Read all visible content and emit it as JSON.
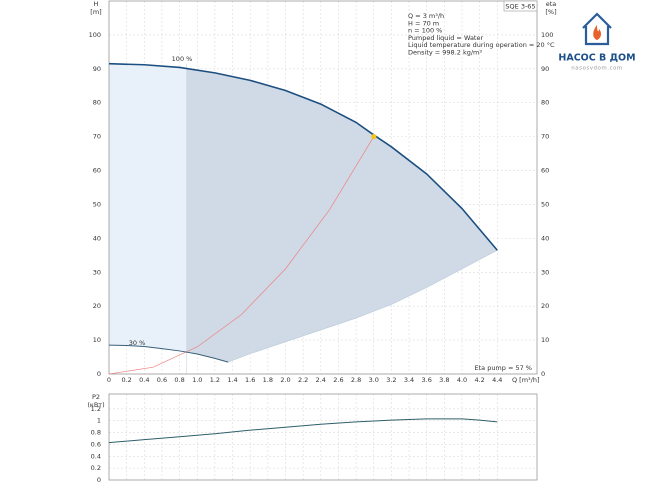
{
  "logo": {
    "title": "НАСОС В ДОМ",
    "subtitle": "nasosvdom.com"
  },
  "chart_data": [
    {
      "type": "line",
      "model": "SQE 3-65",
      "ylabel": "H",
      "yunit": "[m]",
      "y2label": "eta",
      "y2unit": "[%]",
      "xlabel": "Q [m³/h]",
      "info": [
        "Q = 3 m³/h",
        "H = 70 m",
        "n = 100 %",
        "Pumped liquid = Water",
        "Liquid temperature during operation = 20 °C",
        "Density = 998.2 kg/m³"
      ],
      "efficiency_label": "Eta pump = 57 %",
      "xlim": [
        0,
        4.85
      ],
      "xticks": [
        0,
        0.2,
        0.4,
        0.6,
        0.8,
        {
          "value": 1,
          "label": "1.0"
        },
        1.2,
        1.4,
        1.6,
        1.8,
        {
          "value": 2,
          "label": "2.0"
        },
        2.2,
        2.4,
        2.6,
        2.8,
        {
          "value": 3,
          "label": "3.0"
        },
        3.2,
        3.4,
        3.6,
        3.8,
        {
          "value": 4,
          "label": "4.0"
        },
        4.2,
        4.4
      ],
      "ylim": [
        0,
        110
      ],
      "yticks": [
        0,
        10,
        20,
        30,
        40,
        50,
        60,
        70,
        80,
        90,
        100
      ],
      "y2lim": [
        0,
        110
      ],
      "y2ticks": [
        0,
        10,
        20,
        30,
        40,
        50,
        60,
        70,
        80,
        90,
        100
      ],
      "grid": true,
      "series": [
        {
          "name": "100 %",
          "color": "#1c4f80",
          "x": [
            0,
            0.4,
            0.8,
            1.2,
            1.6,
            2.0,
            2.4,
            2.8,
            3.0,
            3.2,
            3.6,
            4.0,
            4.4
          ],
          "values": [
            91.5,
            91.2,
            90.4,
            88.8,
            86.6,
            83.6,
            79.6,
            74.2,
            70.5,
            67,
            59,
            48.8,
            36.5
          ]
        },
        {
          "name": "30 %",
          "color": "#3a5f7a",
          "x": [
            0,
            0.2,
            0.4,
            0.6,
            0.8,
            1.0,
            1.2,
            1.35
          ],
          "values": [
            8.5,
            8.4,
            8.1,
            7.5,
            6.8,
            5.9,
            4.6,
            3.5
          ]
        }
      ],
      "system_curve": {
        "color": "#f08080",
        "x": [
          0,
          0.5,
          1.0,
          1.5,
          2.0,
          2.5,
          3.0
        ],
        "values": [
          0,
          2,
          8,
          17.5,
          31,
          48.5,
          70
        ]
      },
      "area_lower": {
        "color": "#b9c9d9",
        "x": [
          1.35,
          1.6,
          2.0,
          2.4,
          2.8,
          3.2,
          3.6,
          4.0,
          4.4
        ],
        "values": [
          3.5,
          6,
          9.5,
          13,
          16.5,
          20.5,
          25.5,
          31,
          36.5
        ]
      },
      "area_color": "#cfdae6",
      "area_color_low": "#e8f1fa",
      "area_split_x": 0.88,
      "duty_point": {
        "x": 3,
        "y": 70,
        "color": "#f5c518"
      }
    },
    {
      "type": "line",
      "ylabel": "P2",
      "yunit": "(кВт)",
      "xlim": [
        0,
        4.85
      ],
      "ylim": [
        0,
        1.45
      ],
      "yticks": [
        0,
        0.2,
        0.4,
        0.6,
        0.8,
        1,
        1.2
      ],
      "grid": true,
      "series": [
        {
          "color": "#2f5f6a",
          "x": [
            0,
            0.4,
            0.8,
            1.2,
            1.6,
            2.0,
            2.4,
            2.8,
            3.2,
            3.6,
            4.0,
            4.2,
            4.4
          ],
          "values": [
            0.63,
            0.68,
            0.73,
            0.78,
            0.84,
            0.89,
            0.94,
            0.98,
            1.01,
            1.03,
            1.03,
            1.01,
            0.98
          ]
        }
      ]
    }
  ]
}
